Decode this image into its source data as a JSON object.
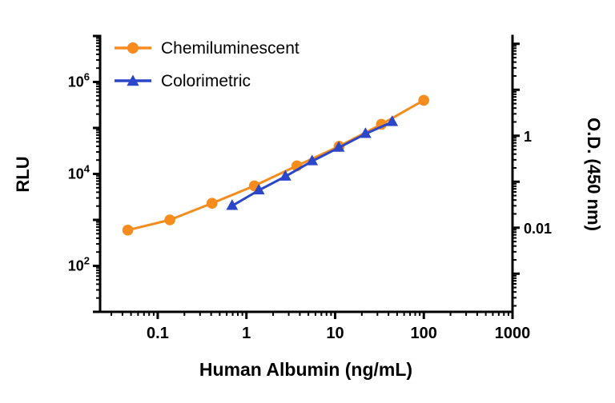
{
  "chart_data": {
    "type": "line",
    "title": "",
    "xlabel": "Human Albumin (ng/mL)",
    "ylabel": "RLU",
    "ylabel_right": "O.D. (450 nm)",
    "grid": false,
    "background": "#FFFFFF",
    "axis_color": "#000000",
    "legend_position": "top-left-inside",
    "x_axis": {
      "scale": "log",
      "min": 0.0224,
      "max": 1000,
      "tick_values": [
        0.1,
        1,
        10,
        100,
        1000
      ],
      "tick_labels": [
        "0.1",
        "1",
        "10",
        "100",
        "1000"
      ]
    },
    "y_axis_left": {
      "scale": "log",
      "min": 10,
      "max": 10000000,
      "tick_exponents_labeled": [
        2,
        4,
        6
      ]
    },
    "y_axis_right": {
      "scale": "log",
      "min": 0.000148,
      "max": 148,
      "tick_values": [
        0.01,
        1
      ],
      "tick_labels": [
        "0.01",
        "1"
      ]
    },
    "series": [
      {
        "name": "Chemiluminescent",
        "axis": "left",
        "color": "#F68B1E",
        "marker": "circle",
        "x": [
          0.046,
          0.137,
          0.41,
          1.23,
          3.7,
          11.1,
          33.3,
          100
        ],
        "y": [
          600,
          1000,
          2300,
          5500,
          15000,
          40000,
          120000,
          400000
        ]
      },
      {
        "name": "Colorimetric",
        "axis": "right",
        "color": "#2B46C8",
        "marker": "triangle",
        "x": [
          0.69,
          1.38,
          2.75,
          5.5,
          11,
          22,
          44
        ],
        "y": [
          0.03,
          0.065,
          0.13,
          0.28,
          0.55,
          1.1,
          2.0
        ]
      }
    ]
  }
}
